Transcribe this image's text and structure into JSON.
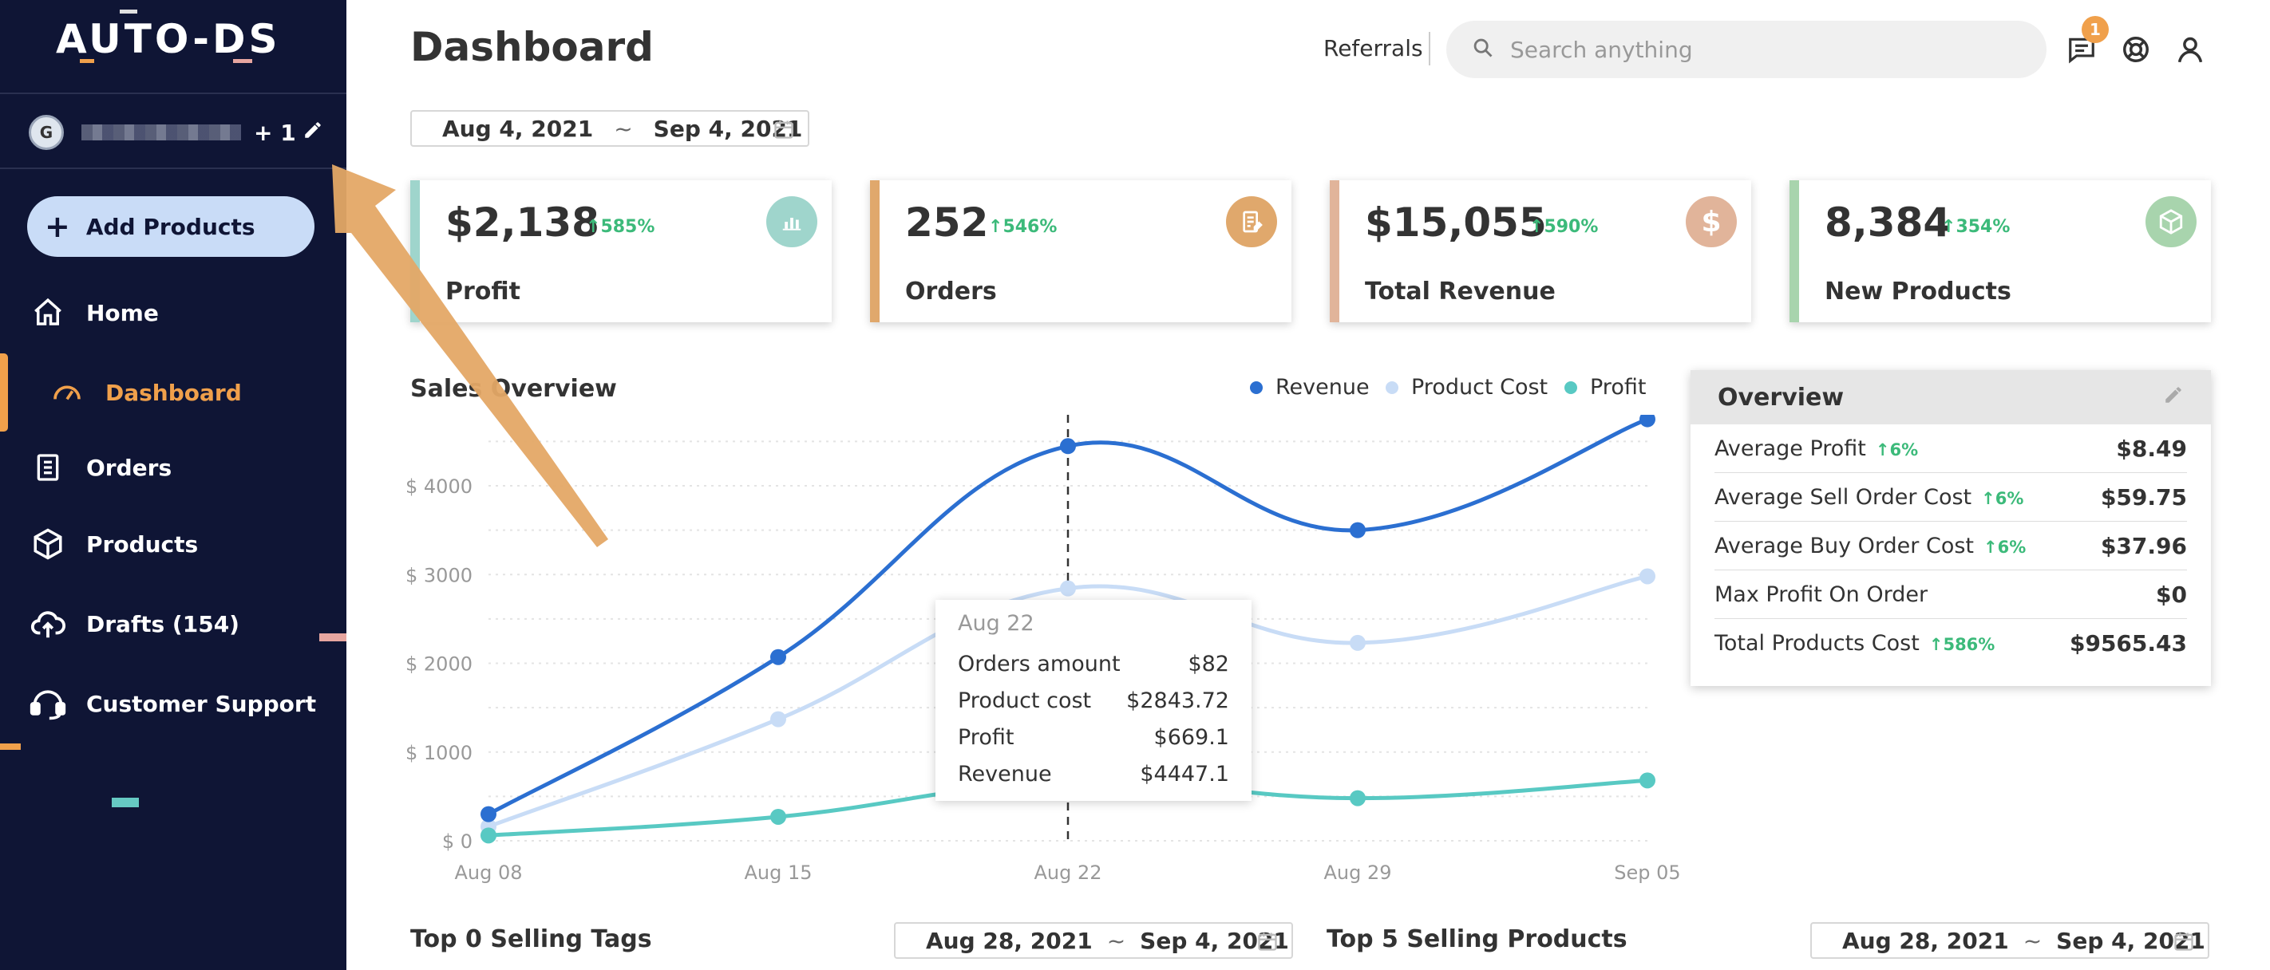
{
  "app": {
    "logo": "AUTO-DS",
    "user_initial": "G",
    "user_extra_count": "+ 1"
  },
  "sidebar": {
    "add_products": "Add Products",
    "items": [
      {
        "label": "Home",
        "icon": "home-icon"
      },
      {
        "label": "Dashboard",
        "icon": "gauge-icon",
        "active": true
      },
      {
        "label": "Orders",
        "icon": "clipboard-icon"
      },
      {
        "label": "Products",
        "icon": "box-icon"
      },
      {
        "label": "Drafts (154)",
        "icon": "cloud-upload-icon"
      },
      {
        "label": "Customer Support",
        "icon": "headset-icon"
      }
    ]
  },
  "header": {
    "title": "Dashboard",
    "referrals": "Referrals",
    "search_placeholder": "Search anything",
    "notification_count": "1"
  },
  "date_range": {
    "from": "Aug 4, 2021",
    "sep": "~",
    "to": "Sep 4, 2021"
  },
  "cards": [
    {
      "value": "$2,138",
      "pct": "585%",
      "label": "Profit",
      "color": "#9fd5cc",
      "icon": "bar-chart-icon"
    },
    {
      "value": "252",
      "pct": "546%",
      "label": "Orders",
      "color": "#e0a86c",
      "icon": "receipt-icon"
    },
    {
      "value": "$15,055",
      "pct": "590%",
      "label": "Total Revenue",
      "color": "#e1b49a",
      "icon": "dollar-icon"
    },
    {
      "value": "8,384",
      "pct": "354%",
      "label": "New Products",
      "color": "#a8d4ad",
      "icon": "cube-icon"
    }
  ],
  "sales": {
    "title": "Sales Overview",
    "legend": [
      {
        "name": "Revenue",
        "color": "#2b6fd1"
      },
      {
        "name": "Product Cost",
        "color": "#c8dcf6"
      },
      {
        "name": "Profit",
        "color": "#58c9c3"
      }
    ],
    "tooltip": {
      "date": "Aug 22",
      "rows": [
        {
          "label": "Orders amount",
          "value": "$82"
        },
        {
          "label": "Product cost",
          "value": "$2843.72"
        },
        {
          "label": "Profit",
          "value": "$669.1"
        },
        {
          "label": "Revenue",
          "value": "$4447.1"
        }
      ]
    }
  },
  "chart_data": {
    "type": "line",
    "x": [
      "Aug 08",
      "Aug 15",
      "Aug 22",
      "Aug 29",
      "Sep 05"
    ],
    "y_ticks": [
      "$ 0",
      "$ 1000",
      "$ 2000",
      "$ 3000",
      "$ 4000"
    ],
    "ylim": [
      0,
      4800
    ],
    "series": [
      {
        "name": "Revenue",
        "values": [
          300,
          2070,
          4447.1,
          3500,
          4750
        ]
      },
      {
        "name": "Product Cost",
        "values": [
          160,
          1370,
          2843.72,
          2230,
          2980
        ]
      },
      {
        "name": "Profit",
        "values": [
          60,
          270,
          669.1,
          480,
          680
        ]
      }
    ]
  },
  "overview": {
    "title": "Overview",
    "rows": [
      {
        "label": "Average Profit",
        "pct": "6%",
        "value": "$8.49"
      },
      {
        "label": "Average Sell Order Cost",
        "pct": "6%",
        "value": "$59.75"
      },
      {
        "label": "Average Buy Order Cost",
        "pct": "6%",
        "value": "$37.96"
      },
      {
        "label": "Max Profit On Order",
        "pct": "",
        "value": "$0"
      },
      {
        "label": "Total Products Cost",
        "pct": "586%",
        "value": "$9565.43"
      }
    ]
  },
  "bottom": {
    "tags_title": "Top 0 Selling Tags",
    "products_title": "Top 5 Selling Products",
    "range_from": "Aug 28, 2021",
    "range_sep": "~",
    "range_to": "Sep 4, 2021"
  }
}
